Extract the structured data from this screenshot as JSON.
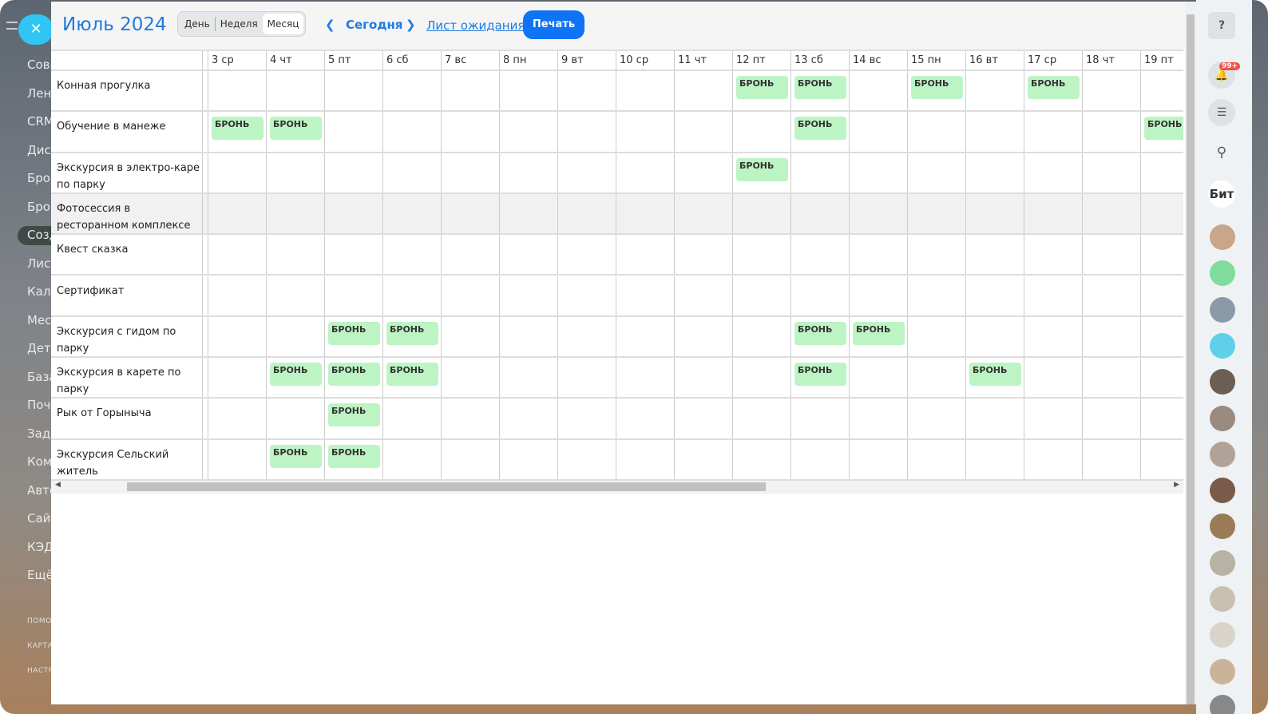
{
  "left_nav": {
    "items": [
      "Совм",
      "Лент",
      "CRM",
      "Диск",
      "Брон",
      "Брон",
      "Созд",
      "Лист",
      "Кале",
      "Месс",
      "Дета",
      "База",
      "Почт",
      "Зада",
      "Комп",
      "Авто",
      "Сайт",
      "КЭД",
      "Ещё"
    ],
    "selected": 6,
    "footer": [
      "ПОМО",
      "КАРТА",
      "НАСТР"
    ]
  },
  "header": {
    "title": "Июль 2024",
    "views": [
      "День",
      "Неделя",
      "Месяц"
    ],
    "active_view": "Месяц",
    "today": "Сегодня",
    "waitlist": "Лист ожидания",
    "print": "Печать"
  },
  "days": [
    "3 ср",
    "4 чт",
    "5 пт",
    "6 сб",
    "7 вс",
    "8 пн",
    "9 вт",
    "10 ср",
    "11 чт",
    "12 пт",
    "13 сб",
    "14 вс",
    "15 пн",
    "16 вт",
    "17 ср",
    "18 чт",
    "19 пт"
  ],
  "booking_label": "БРОНЬ",
  "colors": {
    "accent": "#1f7ae0",
    "booking": "#bdf4c4",
    "print": "#0f73f5"
  },
  "rows": [
    {
      "name": "Конная прогулка",
      "bookings": [
        "12 пт",
        "13 сб",
        "15 пн",
        "17 ср"
      ]
    },
    {
      "name": "Обучение в манеже",
      "bookings": [
        "3 ср",
        "4 чт",
        "13 сб",
        "19 пт"
      ]
    },
    {
      "name": "Экскурсия в электро-каре по парку",
      "bookings": [
        "12 пт"
      ]
    },
    {
      "name": "Фотосессия в ресторанном комплексе",
      "bookings": [],
      "disabled": true
    },
    {
      "name": "Квест сказка",
      "bookings": []
    },
    {
      "name": "Сертификат",
      "bookings": []
    },
    {
      "name": "Экскурсия с гидом по парку",
      "bookings": [
        "5 пт",
        "6 сб",
        "13 сб",
        "14 вс"
      ]
    },
    {
      "name": "Экскурсия в карете по парку",
      "bookings": [
        "4 чт",
        "5 пт",
        "6 сб",
        "13 сб",
        "16 вт"
      ]
    },
    {
      "name": "Рык от Горыныча",
      "bookings": [
        "5 пт"
      ]
    },
    {
      "name": "Экскурсия Сельский житель",
      "bookings": [
        "4 чт",
        "5 пт"
      ]
    }
  ],
  "right_bar": {
    "notifications": "99+",
    "logo": "Бит",
    "icons": [
      "help-icon",
      "bell-icon",
      "chat-icon",
      "search-icon"
    ]
  }
}
